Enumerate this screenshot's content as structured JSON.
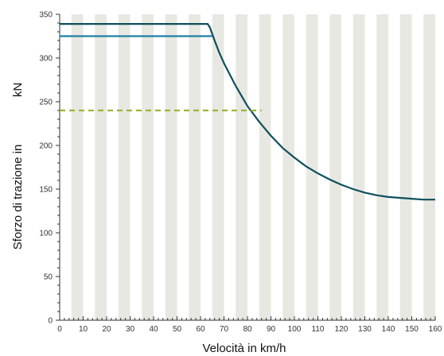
{
  "chart_data": {
    "type": "line",
    "title": "",
    "xlabel": "Velocità in km/h",
    "ylabel": "Sforzo di trazione in",
    "ylabel_unit": "kN",
    "xlim": [
      0,
      160
    ],
    "ylim": [
      0,
      350
    ],
    "x_ticks": [
      0,
      10,
      20,
      30,
      40,
      50,
      60,
      70,
      80,
      90,
      100,
      110,
      120,
      130,
      140,
      150,
      160
    ],
    "y_ticks": [
      0,
      50,
      100,
      150,
      200,
      250,
      300,
      350
    ],
    "x_minor_step": 2,
    "y_minor_step": 10,
    "background_stripes": "alternating 5 km/h bands",
    "series": [
      {
        "color": "#0d4f5c",
        "style": "solid",
        "points": [
          [
            0,
            339
          ],
          [
            63,
            339
          ],
          [
            64,
            335
          ],
          [
            66,
            320
          ],
          [
            68,
            306
          ],
          [
            70,
            294
          ],
          [
            75,
            268
          ],
          [
            80,
            245
          ],
          [
            85,
            227
          ],
          [
            90,
            211
          ],
          [
            95,
            197
          ],
          [
            100,
            186
          ],
          [
            105,
            176
          ],
          [
            110,
            168
          ],
          [
            115,
            161
          ],
          [
            120,
            155
          ],
          [
            125,
            150
          ],
          [
            130,
            146
          ],
          [
            135,
            143
          ],
          [
            140,
            141
          ],
          [
            145,
            140
          ],
          [
            150,
            139
          ],
          [
            155,
            138
          ],
          [
            160,
            138
          ]
        ]
      },
      {
        "color": "#1f7fa3",
        "style": "solid",
        "points": [
          [
            0,
            325
          ],
          [
            65,
            325
          ]
        ]
      },
      {
        "color": "#9ab53a",
        "style": "dashed",
        "points": [
          [
            0,
            240
          ],
          [
            86,
            240
          ]
        ]
      }
    ]
  }
}
